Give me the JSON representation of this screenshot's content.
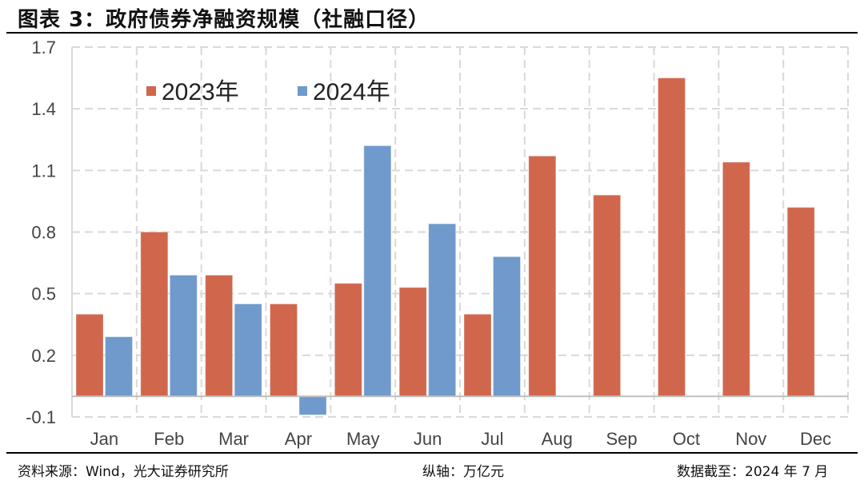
{
  "header": {
    "title": "图表 3：政府债券净融资规模（社融口径）"
  },
  "footer": {
    "source": "资料来源：Wind，光大证券研究所",
    "unit": "纵轴：万亿元",
    "data_cutoff": "数据截至：2024 年 7 月"
  },
  "colors": {
    "series_2023": "#D0674C",
    "series_2024": "#6F9ACB",
    "grid": "#D9D9D9",
    "axis": "#BFBFBF"
  },
  "chart_data": {
    "type": "bar",
    "title": "政府债券净融资规模（社融口径）",
    "xlabel": "",
    "ylabel": "万亿元",
    "ylim": [
      -0.1,
      1.7
    ],
    "yticks": [
      1.7,
      1.4,
      1.1,
      0.8,
      0.5,
      0.2,
      -0.1
    ],
    "ytick_labels": [
      "1.7",
      "1.4",
      "1.1",
      "0.8",
      "0.5",
      "0.2",
      "-0.1"
    ],
    "grid": true,
    "legend_position": "top-left inside",
    "categories": [
      "Jan",
      "Feb",
      "Mar",
      "Apr",
      "May",
      "Jun",
      "Jul",
      "Aug",
      "Sep",
      "Oct",
      "Nov",
      "Dec"
    ],
    "series": [
      {
        "name": "2023年",
        "color": "#D0674C",
        "values": [
          0.4,
          0.8,
          0.59,
          0.45,
          0.55,
          0.53,
          0.4,
          1.17,
          0.98,
          1.55,
          1.14,
          0.92
        ]
      },
      {
        "name": "2024年",
        "color": "#6F9ACB",
        "values": [
          0.29,
          0.59,
          0.45,
          -0.09,
          1.22,
          0.84,
          0.68,
          null,
          null,
          null,
          null,
          null
        ]
      }
    ]
  }
}
